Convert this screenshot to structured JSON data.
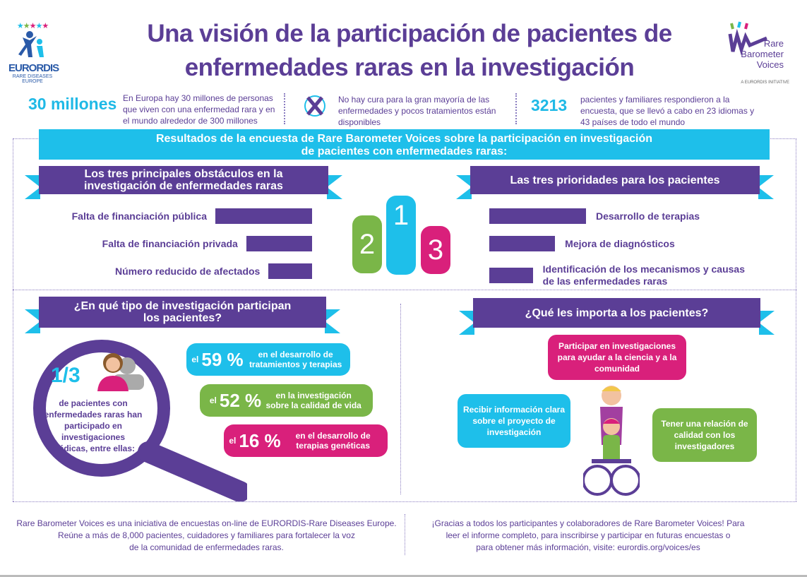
{
  "logos": {
    "eurordis": "EURORDIS",
    "eurordis_sub": "RARE DISEASES EUROPE",
    "rbv_lines": [
      "Rare",
      "Barometer",
      "Voices"
    ],
    "rbv_sub": "A EURORDIS INITIATIVE"
  },
  "title": [
    "Una visión de la participación de pacientes de",
    "enfermedades raras en la investigación"
  ],
  "stats": [
    {
      "big": "30 millones",
      "text": "En Europa hay 30 millones de personas que viven con una enfermedad rara y en el mundo alrededor de 300 millones"
    },
    {
      "icon": "no-cure-icon",
      "text": "No hay cura para la gran mayoría de las enfermedades y pocos tratamientos están disponibles"
    },
    {
      "big": "3213",
      "text": "pacientes y familiares respondieron a la encuesta, que se llevó a cabo en 23  idiomas y 43 países de todo el mundo"
    }
  ],
  "results_header": [
    "Resultados de la encuesta de Rare Barometer Voices sobre la participación en investigación",
    "de pacientes con enfermedades raras:"
  ],
  "obstacles": {
    "title": "Los tres principales obstáculos en la investigación de enfermedades raras",
    "items": [
      {
        "label": "Falta de financiación pública",
        "value": 1.0
      },
      {
        "label": "Falta de financiación privada",
        "value": 0.68
      },
      {
        "label": "Número reducido de afectados",
        "value": 0.45
      }
    ]
  },
  "podium": [
    "2",
    "1",
    "3"
  ],
  "priorities": {
    "title": "Las tres prioridades para los pacientes",
    "items": [
      {
        "label": "Desarrollo de terapias",
        "value": 1.0
      },
      {
        "label": "Mejora de diagnósticos",
        "value": 0.68
      },
      {
        "label": "Identificación de los mecanismos y causas de las enfermedades raras",
        "value": 0.45
      }
    ]
  },
  "research": {
    "title": "¿En qué tipo de investigación participan los pacientes?",
    "fraction": "1/3",
    "fraction_text": "de pacientes con enfermedades raras han participado en investigaciones médicas, entre ellas:",
    "items": [
      {
        "pre": "el",
        "pct": "59 %",
        "text": "en el desarrollo de tratamientos y terapias",
        "color": "#1ebfea"
      },
      {
        "pre": "el",
        "pct": "52 %",
        "text": "en la investigación sobre la calidad de vida",
        "color": "#7ab648"
      },
      {
        "pre": "el",
        "pct": "16 %",
        "text": "en el desarrollo de terapias genéticas",
        "color": "#d9207b"
      }
    ]
  },
  "matters": {
    "title": "¿Qué les importa a los pacientes?",
    "bubbles": [
      "Participar en investigaciones para ayudar a la ciencia y a la comunidad",
      "Recibir información clara sobre el proyecto de investigación",
      "Tener una relación de calidad con los investigadores"
    ]
  },
  "footer": {
    "left": [
      "Rare Barometer Voices es una iniciativa de encuestas on-line de EURORDIS-Rare Diseases Europe.",
      "Reúne a más de 8,000 pacientes, cuidadores y familiares para fortalecer la voz",
      "de la comunidad de enfermedades raras."
    ],
    "right": [
      "¡Gracias a todos los participantes y colaboradores de Rare Barometer Voices! Para",
      "leer el informe completo, para inscribirse y participar en futuras encuestas o",
      "para obtener más información, visite: eurordis.org/voices/es"
    ]
  }
}
